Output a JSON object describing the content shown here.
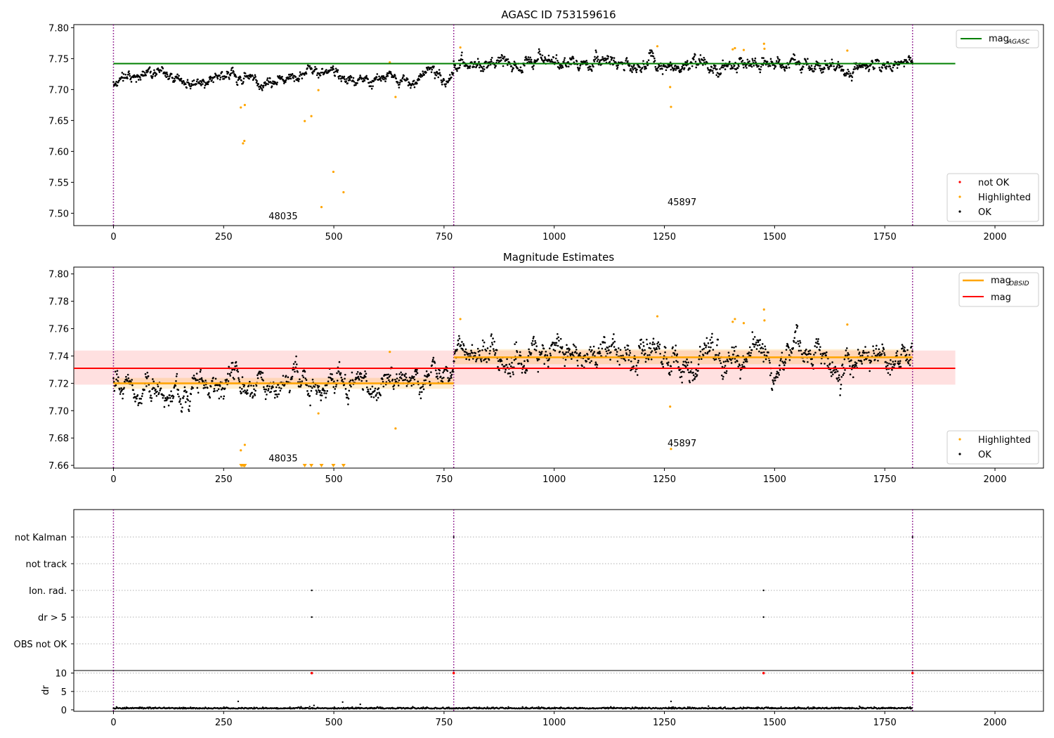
{
  "chart_data": [
    {
      "type": "scatter",
      "title": "AGASC ID 753159616",
      "xlim": [
        -90,
        2110
      ],
      "ylim": [
        7.48,
        7.805
      ],
      "xticks": [
        0,
        250,
        500,
        750,
        1000,
        1250,
        1500,
        1750,
        2000
      ],
      "yticks": [
        7.5,
        7.55,
        7.6,
        7.65,
        7.7,
        7.75,
        7.8
      ],
      "ytick_labels": [
        "7.50",
        "7.55",
        "7.60",
        "7.65",
        "7.70",
        "7.75",
        "7.80"
      ],
      "obsid_boundaries": [
        0,
        772,
        1813
      ],
      "obsid_labels": [
        {
          "x": 385,
          "y": 7.49,
          "text": "48035"
        },
        {
          "x": 1290,
          "y": 7.513,
          "text": "45897"
        }
      ],
      "mag_agasc": 7.742,
      "mag_agasc_xrange": [
        0,
        1910
      ],
      "ok_segments": [
        {
          "x0": 0,
          "x1": 772,
          "base": 7.72,
          "noise": 0.006
        },
        {
          "x0": 772,
          "x1": 1813,
          "base": 7.74,
          "noise": 0.007
        }
      ],
      "highlighted_points": [
        [
          289,
          7.671
        ],
        [
          294,
          7.613
        ],
        [
          297,
          7.617
        ],
        [
          298,
          7.675
        ],
        [
          434,
          7.649
        ],
        [
          449,
          7.657
        ],
        [
          465,
          7.699
        ],
        [
          472,
          7.51
        ],
        [
          499,
          7.567
        ],
        [
          522,
          7.534
        ],
        [
          627,
          7.744
        ],
        [
          640,
          7.688
        ],
        [
          787,
          7.768
        ],
        [
          1234,
          7.77
        ],
        [
          1263,
          7.704
        ],
        [
          1265,
          7.672
        ],
        [
          1405,
          7.765
        ],
        [
          1410,
          7.767
        ],
        [
          1430,
          7.764
        ],
        [
          1476,
          7.774
        ],
        [
          1477,
          7.766
        ],
        [
          1665,
          7.763
        ]
      ],
      "legend_top": [
        {
          "label": "mag",
          "subscript": "AGASC",
          "color": "#008000"
        }
      ],
      "legend_bottom": [
        {
          "label": "not OK",
          "color": "#ff0000"
        },
        {
          "label": "Highlighted",
          "color": "#ffa500"
        },
        {
          "label": "OK",
          "color": "#000000"
        }
      ]
    },
    {
      "type": "scatter",
      "title": "Magnitude Estimates",
      "xlim": [
        -90,
        2110
      ],
      "ylim": [
        7.658,
        7.805
      ],
      "xticks": [
        0,
        250,
        500,
        750,
        1000,
        1250,
        1500,
        1750,
        2000
      ],
      "yticks": [
        7.66,
        7.68,
        7.7,
        7.72,
        7.74,
        7.76,
        7.78,
        7.8
      ],
      "ytick_labels": [
        "7.66",
        "7.68",
        "7.70",
        "7.72",
        "7.74",
        "7.76",
        "7.78",
        "7.80"
      ],
      "obsid_boundaries": [
        0,
        772,
        1813
      ],
      "obsid_labels": [
        {
          "x": 385,
          "y": 7.663,
          "text": "48035"
        },
        {
          "x": 1290,
          "y": 7.674,
          "text": "45897"
        }
      ],
      "mag": 7.731,
      "mag_band": [
        7.719,
        7.744
      ],
      "mag_xrange": [
        -90,
        1910
      ],
      "mag_obsid": [
        {
          "x0": 0,
          "x1": 772,
          "value": 7.72,
          "band": [
            7.716,
            7.724
          ]
        },
        {
          "x0": 772,
          "x1": 1813,
          "value": 7.739,
          "band": [
            7.734,
            7.745
          ]
        }
      ],
      "ok_segments": [
        {
          "x0": 0,
          "x1": 772,
          "base": 7.72,
          "noise": 0.006
        },
        {
          "x0": 772,
          "x1": 1813,
          "base": 7.74,
          "noise": 0.007
        }
      ],
      "highlighted_points": [
        [
          289,
          7.671
        ],
        [
          298,
          7.675
        ],
        [
          465,
          7.698
        ],
        [
          627,
          7.743
        ],
        [
          640,
          7.687
        ],
        [
          787,
          7.767
        ],
        [
          1234,
          7.769
        ],
        [
          1263,
          7.703
        ],
        [
          1265,
          7.672
        ],
        [
          1405,
          7.765
        ],
        [
          1410,
          7.767
        ],
        [
          1430,
          7.764
        ],
        [
          1476,
          7.774
        ],
        [
          1477,
          7.766
        ],
        [
          1665,
          7.763
        ]
      ],
      "clipped_markers_x": [
        290,
        294,
        297,
        298,
        434,
        449,
        472,
        499,
        522
      ],
      "legend_top": [
        {
          "label": "mag",
          "subscript": "OBSID",
          "color": "#ffa500"
        },
        {
          "label": "mag",
          "subscript": "",
          "color": "#ff0000"
        }
      ],
      "legend_bottom": [
        {
          "label": "Highlighted",
          "color": "#ffa500"
        },
        {
          "label": "OK",
          "color": "#000000"
        }
      ]
    },
    {
      "type": "scatter",
      "title": "",
      "xlim": [
        -90,
        2110
      ],
      "obsid_boundaries": [
        0,
        772,
        1813
      ],
      "flag_rows": [
        "not Kalman",
        "not track",
        "Ion. rad.",
        "dr > 5",
        "OBS not OK"
      ],
      "flag_points": [
        {
          "row": "Ion. rad.",
          "x": [
            450,
            1475
          ]
        },
        {
          "row": "dr > 5",
          "x": [
            450,
            1475
          ]
        },
        {
          "row": "not Kalman",
          "x": [
            772,
            1813
          ]
        }
      ]
    },
    {
      "type": "scatter",
      "title": "",
      "ylabel": "dr",
      "xlim": [
        -90,
        2110
      ],
      "ylim": [
        -0.4,
        10.7
      ],
      "xticks": [
        0,
        250,
        500,
        750,
        1000,
        1250,
        1500,
        1750,
        2000
      ],
      "yticks": [
        0,
        5,
        10
      ],
      "obsid_boundaries": [
        0,
        772,
        1813
      ],
      "dr_baseline": 0.3,
      "dr_outliers": [
        [
          283,
          2.3
        ],
        [
          455,
          1.2
        ],
        [
          520,
          2.1
        ],
        [
          560,
          1.5
        ],
        [
          1265,
          2.3
        ],
        [
          1350,
          1.0
        ]
      ],
      "dr_clipped_x": [
        450,
        772,
        1475,
        1813
      ]
    }
  ]
}
